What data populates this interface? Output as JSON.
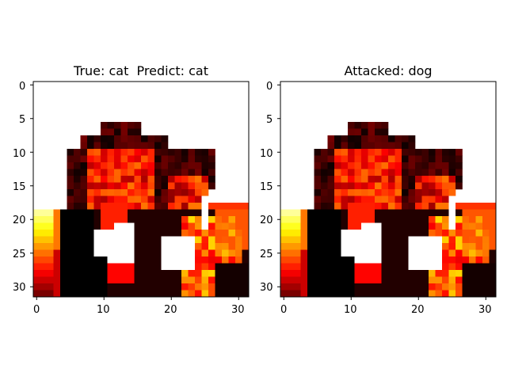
{
  "figure": {
    "panels": [
      {
        "title": "True: cat  Predict: cat"
      },
      {
        "title": "Attacked: dog"
      }
    ],
    "x_ticks": [
      "0",
      "10",
      "20",
      "30"
    ],
    "y_ticks": [
      "0",
      "5",
      "10",
      "15",
      "20",
      "25",
      "30"
    ],
    "image_size": 32,
    "colormap": "hot"
  }
}
